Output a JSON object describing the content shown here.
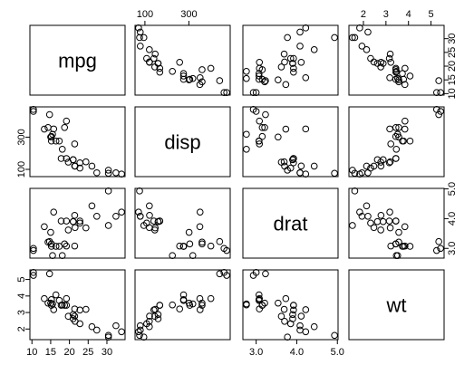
{
  "chart_data": {
    "type": "scatter",
    "kind": "scatterplot-matrix",
    "variables": [
      "mpg",
      "disp",
      "drat",
      "wt"
    ],
    "ranges": {
      "mpg": [
        10.4,
        33.9
      ],
      "disp": [
        71.1,
        472
      ],
      "drat": [
        2.76,
        4.93
      ],
      "wt": [
        1.513,
        5.424
      ]
    },
    "ticks": {
      "mpg": [
        10,
        15,
        20,
        25,
        30
      ],
      "disp": [
        100,
        300
      ],
      "drat": [
        3.0,
        4.0,
        5.0
      ],
      "wt": [
        2,
        3,
        4,
        5
      ]
    },
    "tick_labels": {
      "top": [
        {
          "var": "disp",
          "labels": [
            "100",
            "300"
          ]
        },
        {
          "var": "wt",
          "labels": [
            "2",
            "3",
            "4",
            "5"
          ]
        }
      ],
      "bottom": [
        {
          "var": "mpg",
          "labels": [
            "10",
            "15",
            "20",
            "25",
            "30"
          ]
        },
        {
          "var": "drat",
          "labels": [
            "3.0",
            "4.0",
            "5.0"
          ]
        }
      ],
      "left": [
        {
          "var": "disp",
          "labels": [
            "100",
            "300"
          ]
        },
        {
          "var": "wt",
          "labels": [
            "2",
            "3",
            "4",
            "5"
          ]
        }
      ],
      "right": [
        {
          "var": "mpg",
          "labels": [
            "10",
            "15",
            "20",
            "25",
            "30"
          ]
        },
        {
          "var": "drat",
          "labels": [
            "3.0",
            "4.0",
            "5.0"
          ]
        }
      ]
    },
    "observations": [
      {
        "mpg": 21.0,
        "disp": 160.0,
        "drat": 3.9,
        "wt": 2.62
      },
      {
        "mpg": 21.0,
        "disp": 160.0,
        "drat": 3.9,
        "wt": 2.875
      },
      {
        "mpg": 22.8,
        "disp": 108.0,
        "drat": 3.85,
        "wt": 2.32
      },
      {
        "mpg": 21.4,
        "disp": 258.0,
        "drat": 3.08,
        "wt": 3.215
      },
      {
        "mpg": 18.7,
        "disp": 360.0,
        "drat": 3.15,
        "wt": 3.44
      },
      {
        "mpg": 18.1,
        "disp": 225.0,
        "drat": 2.76,
        "wt": 3.46
      },
      {
        "mpg": 14.3,
        "disp": 360.0,
        "drat": 3.21,
        "wt": 3.57
      },
      {
        "mpg": 24.4,
        "disp": 146.7,
        "drat": 3.69,
        "wt": 3.19
      },
      {
        "mpg": 22.8,
        "disp": 140.8,
        "drat": 3.92,
        "wt": 3.15
      },
      {
        "mpg": 19.2,
        "disp": 167.6,
        "drat": 3.92,
        "wt": 3.44
      },
      {
        "mpg": 17.8,
        "disp": 167.6,
        "drat": 3.92,
        "wt": 3.44
      },
      {
        "mpg": 16.4,
        "disp": 275.8,
        "drat": 3.07,
        "wt": 4.07
      },
      {
        "mpg": 17.3,
        "disp": 275.8,
        "drat": 3.07,
        "wt": 3.73
      },
      {
        "mpg": 15.2,
        "disp": 275.8,
        "drat": 3.07,
        "wt": 3.78
      },
      {
        "mpg": 10.4,
        "disp": 472.0,
        "drat": 2.93,
        "wt": 5.25
      },
      {
        "mpg": 10.4,
        "disp": 460.0,
        "drat": 3.0,
        "wt": 5.424
      },
      {
        "mpg": 14.7,
        "disp": 440.0,
        "drat": 3.23,
        "wt": 5.345
      },
      {
        "mpg": 32.4,
        "disp": 78.7,
        "drat": 4.08,
        "wt": 2.2
      },
      {
        "mpg": 30.4,
        "disp": 75.7,
        "drat": 4.93,
        "wt": 1.615
      },
      {
        "mpg": 33.9,
        "disp": 71.1,
        "drat": 4.22,
        "wt": 1.835
      },
      {
        "mpg": 21.5,
        "disp": 120.1,
        "drat": 3.7,
        "wt": 2.465
      },
      {
        "mpg": 15.5,
        "disp": 318.0,
        "drat": 2.76,
        "wt": 3.52
      },
      {
        "mpg": 15.2,
        "disp": 304.0,
        "drat": 3.15,
        "wt": 3.435
      },
      {
        "mpg": 13.3,
        "disp": 350.0,
        "drat": 3.73,
        "wt": 3.84
      },
      {
        "mpg": 19.2,
        "disp": 400.0,
        "drat": 3.08,
        "wt": 3.845
      },
      {
        "mpg": 27.3,
        "disp": 79.0,
        "drat": 4.08,
        "wt": 1.935
      },
      {
        "mpg": 26.0,
        "disp": 120.3,
        "drat": 4.43,
        "wt": 2.14
      },
      {
        "mpg": 30.4,
        "disp": 95.1,
        "drat": 3.77,
        "wt": 1.513
      },
      {
        "mpg": 15.8,
        "disp": 351.0,
        "drat": 4.22,
        "wt": 3.17
      },
      {
        "mpg": 19.7,
        "disp": 145.0,
        "drat": 3.62,
        "wt": 2.77
      },
      {
        "mpg": 15.0,
        "disp": 301.0,
        "drat": 3.54,
        "wt": 3.57
      },
      {
        "mpg": 21.4,
        "disp": 121.0,
        "drat": 4.11,
        "wt": 2.78
      }
    ],
    "marker": "open-circle",
    "grid": false,
    "legend": "none"
  }
}
